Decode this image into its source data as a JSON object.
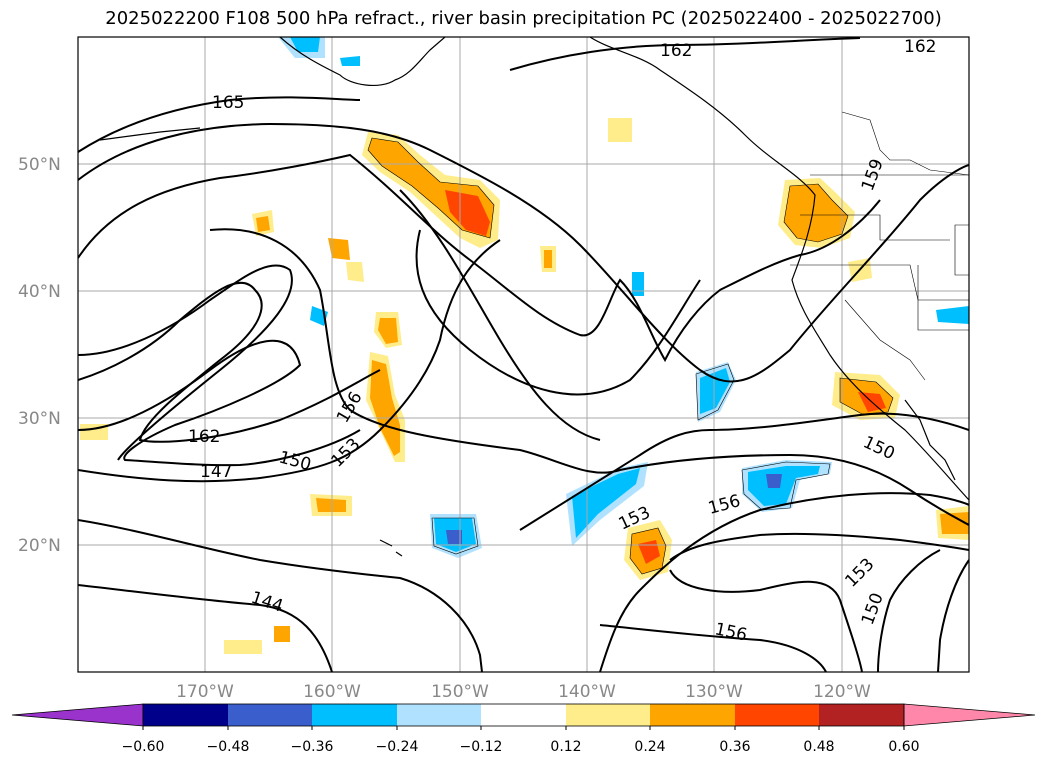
{
  "title": "2025022200 F108 500 hPa refract., river basin precipitation PC (2025022400 - 2025022700)",
  "lat_labels": [
    "50°N",
    "40°N",
    "30°N",
    "20°N"
  ],
  "lon_labels": [
    "170°W",
    "160°W",
    "150°W",
    "140°W",
    "130°W",
    "120°W"
  ],
  "contour_labels": [
    "165",
    "162",
    "162",
    "159",
    "162",
    "147",
    "150",
    "153",
    "156",
    "150",
    "153",
    "156",
    "153",
    "150",
    "144",
    "156"
  ],
  "colorbar": {
    "ticks": [
      "−0.60",
      "−0.48",
      "−0.36",
      "−0.24",
      "−0.12",
      "0.12",
      "0.24",
      "0.36",
      "0.48",
      "0.60"
    ],
    "colors": [
      "#9933cc",
      "#00008b",
      "#3a5fcd",
      "#00bfff",
      "#b0e2ff",
      "#ffffff",
      "#ffec8b",
      "#ffa500",
      "#ff4500",
      "#b22222",
      "#ff88aa"
    ]
  },
  "fill_colors": {
    "pos1": "#ffec8b",
    "pos2": "#ffa500",
    "pos3": "#ff4500",
    "neg1": "#b0e2ff",
    "neg2": "#00bfff",
    "neg3": "#3a5fcd",
    "neg4": "#6a3acd"
  }
}
